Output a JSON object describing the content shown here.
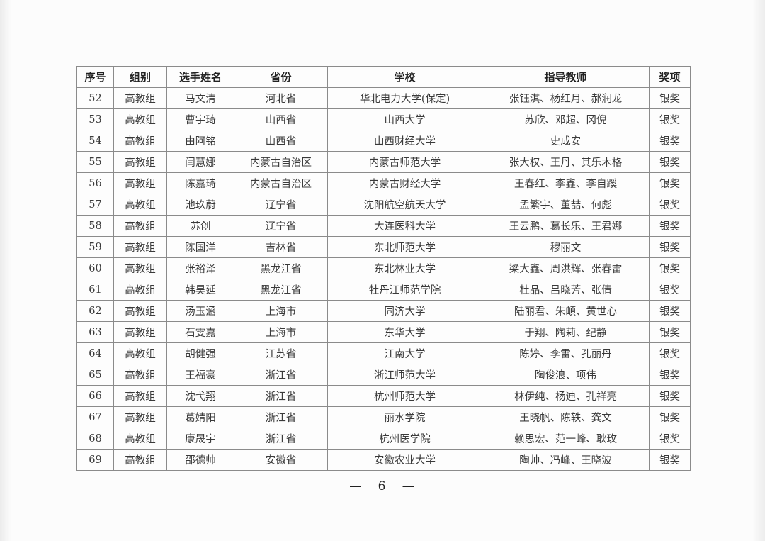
{
  "table": {
    "headers": [
      "序号",
      "组别",
      "选手姓名",
      "省份",
      "学校",
      "指导教师",
      "奖项"
    ],
    "rows": [
      [
        "52",
        "高教组",
        "马文清",
        "河北省",
        "华北电力大学(保定)",
        "张钰淇、杨红月、郝润龙",
        "银奖"
      ],
      [
        "53",
        "高教组",
        "曹宇琦",
        "山西省",
        "山西大学",
        "苏欣、邓超、冈倪",
        "银奖"
      ],
      [
        "54",
        "高教组",
        "由阿铭",
        "山西省",
        "山西财经大学",
        "史成安",
        "银奖"
      ],
      [
        "55",
        "高教组",
        "闫慧娜",
        "内蒙古自治区",
        "内蒙古师范大学",
        "张大权、王丹、其乐木格",
        "银奖"
      ],
      [
        "56",
        "高教组",
        "陈嘉琦",
        "内蒙古自治区",
        "内蒙古财经大学",
        "王春红、李鑫、李自蹊",
        "银奖"
      ],
      [
        "57",
        "高教组",
        "池玖蔚",
        "辽宁省",
        "沈阳航空航天大学",
        "孟繁宇、董喆、何彪",
        "银奖"
      ],
      [
        "58",
        "高教组",
        "苏创",
        "辽宁省",
        "大连医科大学",
        "王云鹏、葛长乐、王君娜",
        "银奖"
      ],
      [
        "59",
        "高教组",
        "陈国洋",
        "吉林省",
        "东北师范大学",
        "穆丽文",
        "银奖"
      ],
      [
        "60",
        "高教组",
        "张裕泽",
        "黑龙江省",
        "东北林业大学",
        "梁大鑫、周洪辉、张春雷",
        "银奖"
      ],
      [
        "61",
        "高教组",
        "韩昊延",
        "黑龙江省",
        "牡丹江师范学院",
        "杜品、吕晓芳、张倩",
        "银奖"
      ],
      [
        "62",
        "高教组",
        "汤玉涵",
        "上海市",
        "同济大学",
        "陆丽君、朱頔、黄世心",
        "银奖"
      ],
      [
        "63",
        "高教组",
        "石雯嘉",
        "上海市",
        "东华大学",
        "于翔、陶莉、纪静",
        "银奖"
      ],
      [
        "64",
        "高教组",
        "胡健强",
        "江苏省",
        "江南大学",
        "陈婷、李雷、孔丽丹",
        "银奖"
      ],
      [
        "65",
        "高教组",
        "王福豪",
        "浙江省",
        "浙江师范大学",
        "陶俊浪、项伟",
        "银奖"
      ],
      [
        "66",
        "高教组",
        "沈弋翔",
        "浙江省",
        "杭州师范大学",
        "林伊纯、杨迪、孔祥亮",
        "银奖"
      ],
      [
        "67",
        "高教组",
        "葛婧阳",
        "浙江省",
        "丽水学院",
        "王晓帆、陈轶、龚文",
        "银奖"
      ],
      [
        "68",
        "高教组",
        "康晟宇",
        "浙江省",
        "杭州医学院",
        "赖思宏、范一峰、耿玫",
        "银奖"
      ],
      [
        "69",
        "高教组",
        "邵德帅",
        "安徽省",
        "安徽农业大学",
        "陶帅、冯峰、王晓波",
        "银奖"
      ]
    ]
  },
  "footer": {
    "page_label": "— 6 —"
  }
}
